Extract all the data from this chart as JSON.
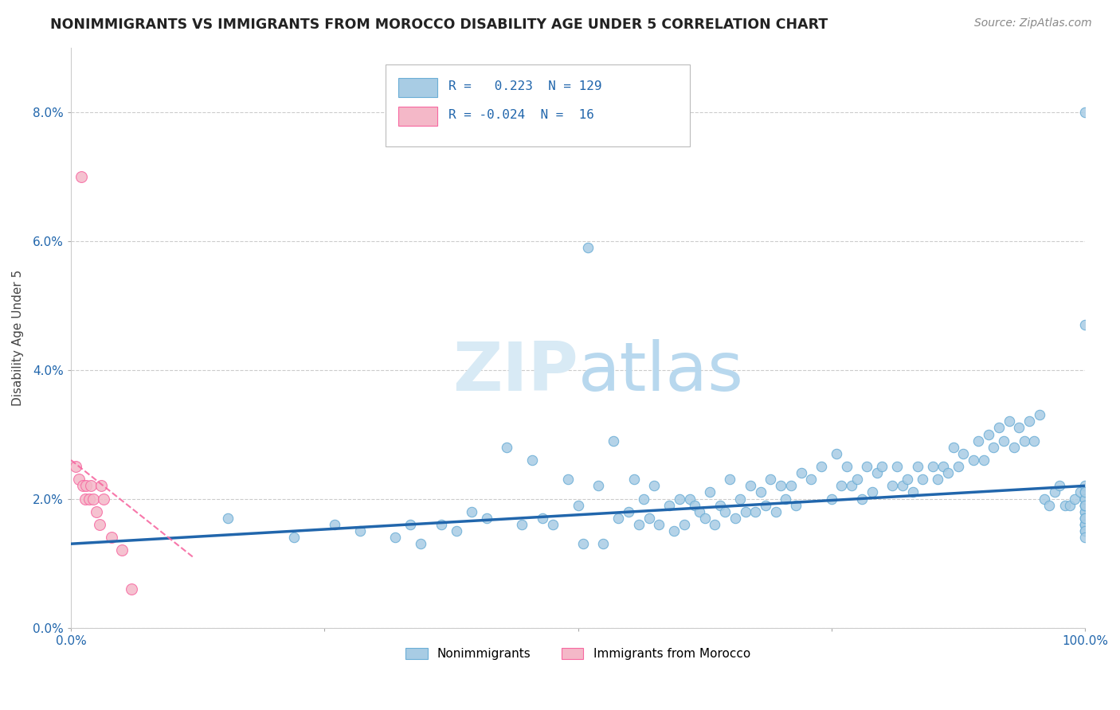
{
  "title": "NONIMMIGRANTS VS IMMIGRANTS FROM MOROCCO DISABILITY AGE UNDER 5 CORRELATION CHART",
  "source": "Source: ZipAtlas.com",
  "ylabel": "Disability Age Under 5",
  "legend_xlabel": "Nonimmigrants",
  "legend_xlabel2": "Immigrants from Morocco",
  "xlim": [
    0.0,
    1.0
  ],
  "ylim": [
    0.0,
    0.09
  ],
  "yticks": [
    0.0,
    0.02,
    0.04,
    0.06,
    0.08
  ],
  "ytick_labels": [
    "0.0%",
    "2.0%",
    "4.0%",
    "6.0%",
    "8.0%"
  ],
  "r_nonimm": 0.223,
  "n_nonimm": 129,
  "r_imm": -0.024,
  "n_imm": 16,
  "blue_color": "#a8cce4",
  "blue_edge_color": "#6baed6",
  "pink_color": "#f4b8c8",
  "pink_edge_color": "#f768a1",
  "blue_line_color": "#2166ac",
  "pink_line_color": "#f768a1",
  "title_color": "#222222",
  "source_color": "#888888",
  "watermark_color": "#d8eaf5",
  "background_color": "#ffffff",
  "grid_color": "#cccccc",
  "blue_scatter_x": [
    0.155,
    0.22,
    0.26,
    0.285,
    0.32,
    0.335,
    0.345,
    0.365,
    0.38,
    0.395,
    0.41,
    0.43,
    0.445,
    0.455,
    0.465,
    0.475,
    0.49,
    0.5,
    0.505,
    0.51,
    0.52,
    0.525,
    0.535,
    0.54,
    0.55,
    0.555,
    0.56,
    0.565,
    0.57,
    0.575,
    0.58,
    0.59,
    0.595,
    0.6,
    0.605,
    0.61,
    0.615,
    0.62,
    0.625,
    0.63,
    0.635,
    0.64,
    0.645,
    0.65,
    0.655,
    0.66,
    0.665,
    0.67,
    0.675,
    0.68,
    0.685,
    0.69,
    0.695,
    0.7,
    0.705,
    0.71,
    0.715,
    0.72,
    0.73,
    0.74,
    0.75,
    0.755,
    0.76,
    0.765,
    0.77,
    0.775,
    0.78,
    0.785,
    0.79,
    0.795,
    0.8,
    0.81,
    0.815,
    0.82,
    0.825,
    0.83,
    0.835,
    0.84,
    0.85,
    0.855,
    0.86,
    0.865,
    0.87,
    0.875,
    0.88,
    0.89,
    0.895,
    0.9,
    0.905,
    0.91,
    0.915,
    0.92,
    0.925,
    0.93,
    0.935,
    0.94,
    0.945,
    0.95,
    0.955,
    0.96,
    0.965,
    0.97,
    0.975,
    0.98,
    0.985,
    0.99,
    0.995,
    1.0,
    1.0,
    1.0,
    1.0,
    1.0,
    1.0,
    1.0,
    1.0,
    1.0,
    1.0,
    1.0,
    1.0,
    1.0,
    1.0,
    1.0,
    1.0,
    1.0,
    1.0,
    1.0,
    1.0,
    1.0,
    1.0
  ],
  "blue_scatter_y": [
    0.017,
    0.014,
    0.016,
    0.015,
    0.014,
    0.016,
    0.013,
    0.016,
    0.015,
    0.018,
    0.017,
    0.028,
    0.016,
    0.026,
    0.017,
    0.016,
    0.023,
    0.019,
    0.013,
    0.059,
    0.022,
    0.013,
    0.029,
    0.017,
    0.018,
    0.023,
    0.016,
    0.02,
    0.017,
    0.022,
    0.016,
    0.019,
    0.015,
    0.02,
    0.016,
    0.02,
    0.019,
    0.018,
    0.017,
    0.021,
    0.016,
    0.019,
    0.018,
    0.023,
    0.017,
    0.02,
    0.018,
    0.022,
    0.018,
    0.021,
    0.019,
    0.023,
    0.018,
    0.022,
    0.02,
    0.022,
    0.019,
    0.024,
    0.023,
    0.025,
    0.02,
    0.027,
    0.022,
    0.025,
    0.022,
    0.023,
    0.02,
    0.025,
    0.021,
    0.024,
    0.025,
    0.022,
    0.025,
    0.022,
    0.023,
    0.021,
    0.025,
    0.023,
    0.025,
    0.023,
    0.025,
    0.024,
    0.028,
    0.025,
    0.027,
    0.026,
    0.029,
    0.026,
    0.03,
    0.028,
    0.031,
    0.029,
    0.032,
    0.028,
    0.031,
    0.029,
    0.032,
    0.029,
    0.033,
    0.02,
    0.019,
    0.021,
    0.022,
    0.019,
    0.019,
    0.02,
    0.021,
    0.018,
    0.019,
    0.02,
    0.021,
    0.022,
    0.016,
    0.017,
    0.08,
    0.018,
    0.019,
    0.016,
    0.015,
    0.017,
    0.047,
    0.019,
    0.02,
    0.021,
    0.016,
    0.015,
    0.014,
    0.017,
    0.019
  ],
  "pink_scatter_x": [
    0.005,
    0.008,
    0.01,
    0.012,
    0.014,
    0.015,
    0.018,
    0.02,
    0.022,
    0.025,
    0.028,
    0.03,
    0.032,
    0.04,
    0.05,
    0.06
  ],
  "pink_scatter_y": [
    0.025,
    0.023,
    0.07,
    0.022,
    0.02,
    0.022,
    0.02,
    0.022,
    0.02,
    0.018,
    0.016,
    0.022,
    0.02,
    0.014,
    0.012,
    0.006
  ],
  "blue_line_x0": 0.0,
  "blue_line_y0": 0.013,
  "blue_line_x1": 1.0,
  "blue_line_y1": 0.022,
  "pink_line_x0": 0.0,
  "pink_line_y0": 0.026,
  "pink_line_x1": 0.12,
  "pink_line_y1": 0.011
}
